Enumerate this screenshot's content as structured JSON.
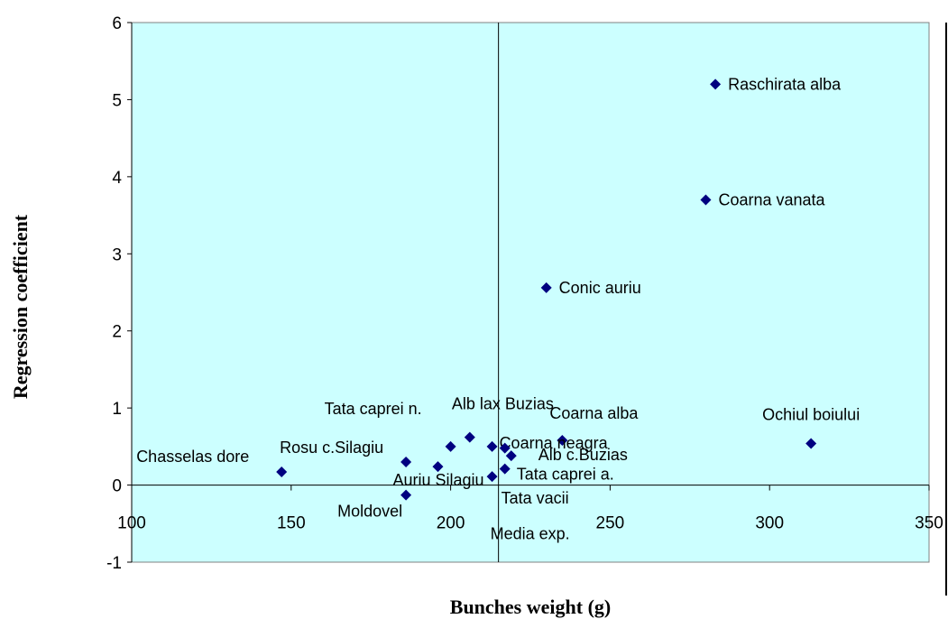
{
  "chart_data": {
    "type": "scatter",
    "xlabel": "Bunches weight (g)",
    "ylabel": "Regression coefficient",
    "xlim": [
      100,
      350
    ],
    "ylim": [
      -1,
      6
    ],
    "x_ticks": [
      100,
      150,
      200,
      250,
      300,
      350
    ],
    "y_ticks": [
      -1,
      0,
      1,
      2,
      3,
      4,
      5,
      6
    ],
    "reference_x": 215,
    "reference_label": "Media exp.",
    "background": "#ccffff",
    "marker_color": "#000080",
    "grid": false,
    "points": [
      {
        "label": "Raschirata alba",
        "x": 283,
        "y": 5.2
      },
      {
        "label": "Coarna vanata",
        "x": 280,
        "y": 3.7
      },
      {
        "label": "Conic auriu",
        "x": 230,
        "y": 2.56
      },
      {
        "label": "Ochiul boiului",
        "x": 313,
        "y": 0.54
      },
      {
        "label": "Coarna alba",
        "x": 235,
        "y": 0.58
      },
      {
        "label": "Alb lax Buzias",
        "x": 206,
        "y": 0.62
      },
      {
        "label": "Tata caprei n.",
        "x": 200,
        "y": 0.5
      },
      {
        "label": "Coarna neagra",
        "x": 213,
        "y": 0.5
      },
      {
        "label": "",
        "x": 217,
        "y": 0.48
      },
      {
        "label": "Alb c.Buzias",
        "x": 219,
        "y": 0.38
      },
      {
        "label": "Tata caprei a.",
        "x": 217,
        "y": 0.21
      },
      {
        "label": "Tata vacii",
        "x": 213,
        "y": 0.11
      },
      {
        "label": "Auriu Silagiu",
        "x": 196,
        "y": 0.24
      },
      {
        "label": "Rosu c.Silagiu",
        "x": 186,
        "y": 0.3
      },
      {
        "label": "Chasselas dore",
        "x": 147,
        "y": 0.17
      },
      {
        "label": "Moldovel",
        "x": 186,
        "y": -0.13
      }
    ]
  }
}
